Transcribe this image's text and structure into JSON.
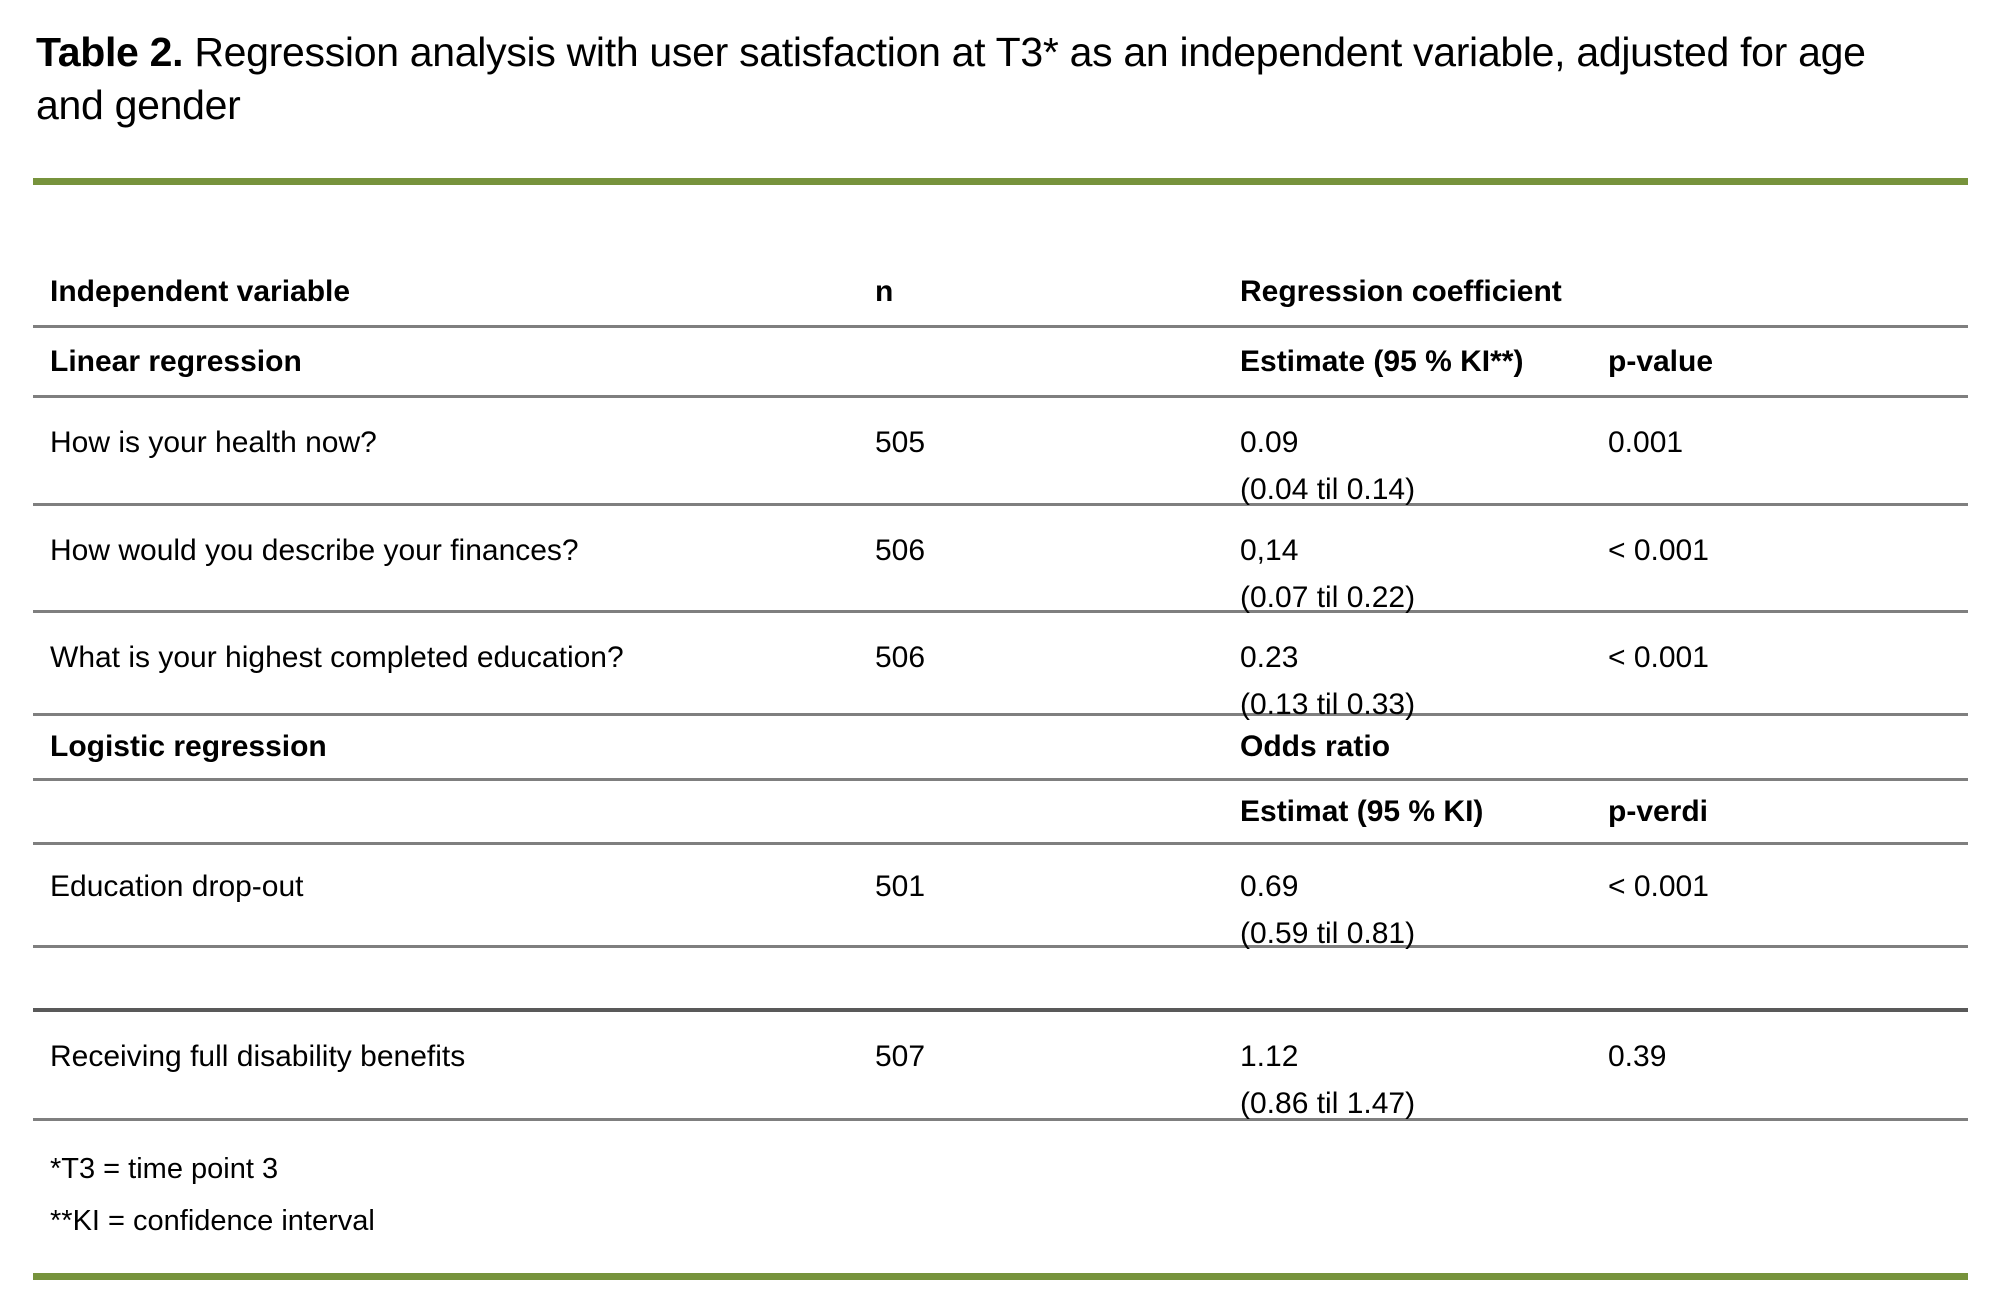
{
  "title": {
    "bold": "Table 2.",
    "rest": "Regression analysis with user satisfaction at T3* as an independent variable, adjusted for age and gender"
  },
  "accent_color": "#77933C",
  "line_color": "#7f7f7f",
  "table": {
    "header1": {
      "col1": "Independent variable",
      "col2": "n",
      "col3": "Regression coefficient"
    },
    "section1": {
      "col1": "Linear regression",
      "col3": "Estimate (95 % KI**)",
      "col4": "p-value"
    },
    "rows": [
      {
        "variable": "How is your health now?",
        "n": "505",
        "estimate": "0.09",
        "ci": "(0.04 til 0.14)",
        "p": "0.001"
      },
      {
        "variable": "How would you describe your finances?",
        "n": "506",
        "estimate": "0,14",
        "ci": "(0.07 til 0.22)",
        "p": "< 0.001"
      },
      {
        "variable": "What is your highest completed education?",
        "n": "506",
        "estimate": "0.23",
        "ci": "(0.13 til 0.33)",
        "p": "< 0.001"
      }
    ],
    "section2": {
      "col1": "Logistic regression",
      "col3": "Odds ratio"
    },
    "subheader2": {
      "col3": "Estimat (95 % KI)",
      "col4": "p-verdi"
    },
    "rows2": [
      {
        "variable": "Education drop-out",
        "n": "501",
        "estimate": "0.69",
        "ci": "(0.59 til 0.81)",
        "p": "< 0.001"
      },
      {
        "variable": "Receiving full disability benefits",
        "n": "507",
        "estimate": "1.12",
        "ci": "(0.86 til 1.47)",
        "p": "0.39"
      }
    ]
  },
  "footnotes": [
    "*T3 = time point 3",
    "**KI = confidence interval"
  ]
}
